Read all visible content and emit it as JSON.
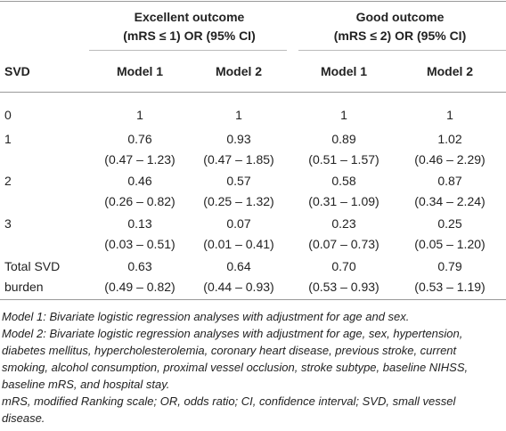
{
  "table": {
    "group_headers": [
      {
        "title": "Excellent outcome",
        "subtitle": "(mRS ≤ 1) OR (95% CI)"
      },
      {
        "title": "Good outcome",
        "subtitle": "(mRS ≤ 2) OR (95% CI)"
      }
    ],
    "row_header": "SVD",
    "model_headers": [
      "Model 1",
      "Model 2",
      "Model 1",
      "Model 2"
    ],
    "rows": [
      {
        "label": "0",
        "cells": [
          {
            "or": "1"
          },
          {
            "or": "1"
          },
          {
            "or": "1"
          },
          {
            "or": "1"
          }
        ]
      },
      {
        "label": "1",
        "cells": [
          {
            "or": "0.76",
            "ci": "(0.47 – 1.23)"
          },
          {
            "or": "0.93",
            "ci": "(0.47 – 1.85)"
          },
          {
            "or": "0.89",
            "ci": "(0.51 – 1.57)"
          },
          {
            "or": "1.02",
            "ci": "(0.46 – 2.29)"
          }
        ]
      },
      {
        "label": "2",
        "cells": [
          {
            "or": "0.46",
            "ci": "(0.26 – 0.82)"
          },
          {
            "or": "0.57",
            "ci": "(0.25 – 1.32)"
          },
          {
            "or": "0.58",
            "ci": "(0.31 – 1.09)"
          },
          {
            "or": "0.87",
            "ci": "(0.34 – 2.24)"
          }
        ]
      },
      {
        "label": "3",
        "cells": [
          {
            "or": "0.13",
            "ci": "(0.03 – 0.51)"
          },
          {
            "or": "0.07",
            "ci": "(0.01 – 0.41)"
          },
          {
            "or": "0.23",
            "ci": "(0.07 – 0.73)"
          },
          {
            "or": "0.25",
            "ci": "(0.05 – 1.20)"
          }
        ]
      },
      {
        "label": "Total SVD burden",
        "cells": [
          {
            "or": "0.63",
            "ci": "(0.49 – 0.82)"
          },
          {
            "or": "0.64",
            "ci": "(0.44 – 0.93)"
          },
          {
            "or": "0.70",
            "ci": "(0.53 – 0.93)"
          },
          {
            "or": "0.79",
            "ci": "(0.53 – 1.19)"
          }
        ]
      }
    ],
    "footnotes": [
      "Model 1: Bivariate logistic regression analyses with adjustment for age and sex.",
      "Model 2: Bivariate logistic regression analyses with adjustment for age, sex, hypertension, diabetes mellitus, hypercholesterolemia, coronary heart disease, previous stroke, current smoking, alcohol consumption, proximal vessel occlusion, stroke subtype, baseline NIHSS, baseline mRS, and hospital stay.",
      "mRS, modified Ranking scale; OR, odds ratio; CI, confidence interval; SVD, small vessel disease."
    ]
  }
}
